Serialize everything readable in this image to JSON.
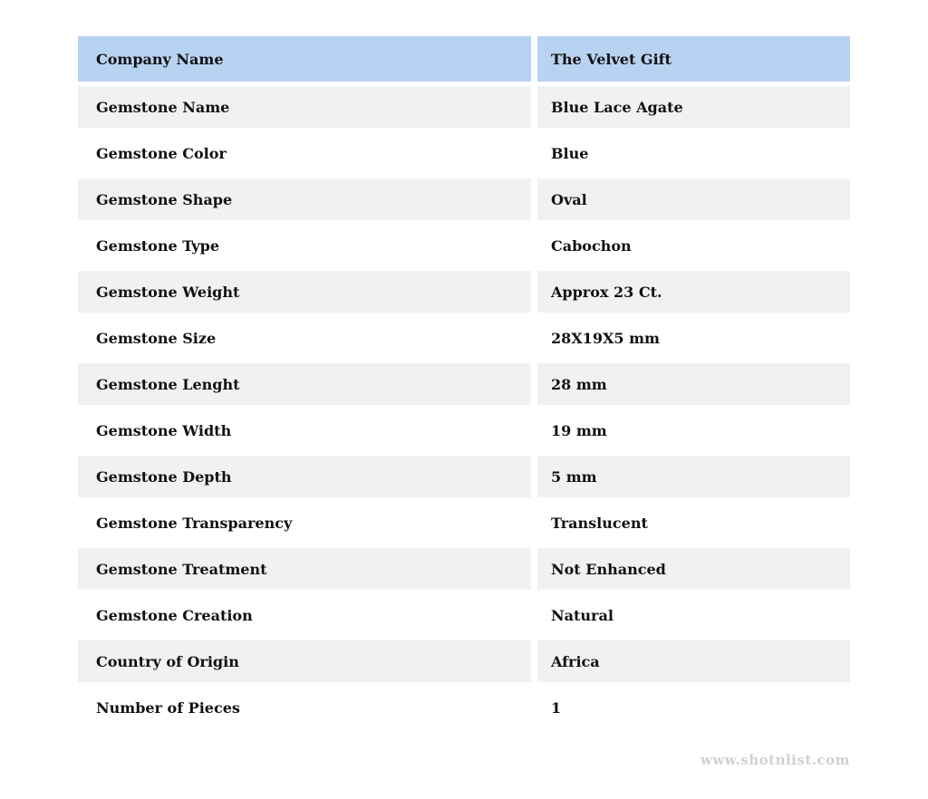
{
  "table": {
    "header": {
      "label": "Company Name",
      "value": "The Velvet Gift"
    },
    "rows": [
      {
        "label": "Gemstone Name",
        "value": "Blue Lace Agate"
      },
      {
        "label": "Gemstone Color",
        "value": "Blue"
      },
      {
        "label": "Gemstone Shape",
        "value": "Oval"
      },
      {
        "label": "Gemstone Type",
        "value": "Cabochon"
      },
      {
        "label": "Gemstone Weight",
        "value": "Approx 23 Ct."
      },
      {
        "label": "Gemstone Size",
        "value": "28X19X5 mm"
      },
      {
        "label": "Gemstone Lenght",
        "value": "28 mm"
      },
      {
        "label": "Gemstone Width",
        "value": "19 mm"
      },
      {
        "label": "Gemstone Depth",
        "value": "5 mm"
      },
      {
        "label": "Gemstone Transparency",
        "value": "Translucent"
      },
      {
        "label": "Gemstone Treatment",
        "value": "Not Enhanced"
      },
      {
        "label": "Gemstone Creation",
        "value": "Natural"
      },
      {
        "label": "Country of Origin",
        "value": "Africa"
      },
      {
        "label": "Number of Pieces",
        "value": "1"
      }
    ]
  },
  "watermark": "www.shotnlist.com",
  "colors": {
    "header_bg": "#b8d3f2",
    "row_alt_bg": "#f1f1f2",
    "row_bg": "#ffffff",
    "text": "#111111",
    "watermark_text": "#d0d0d0"
  }
}
